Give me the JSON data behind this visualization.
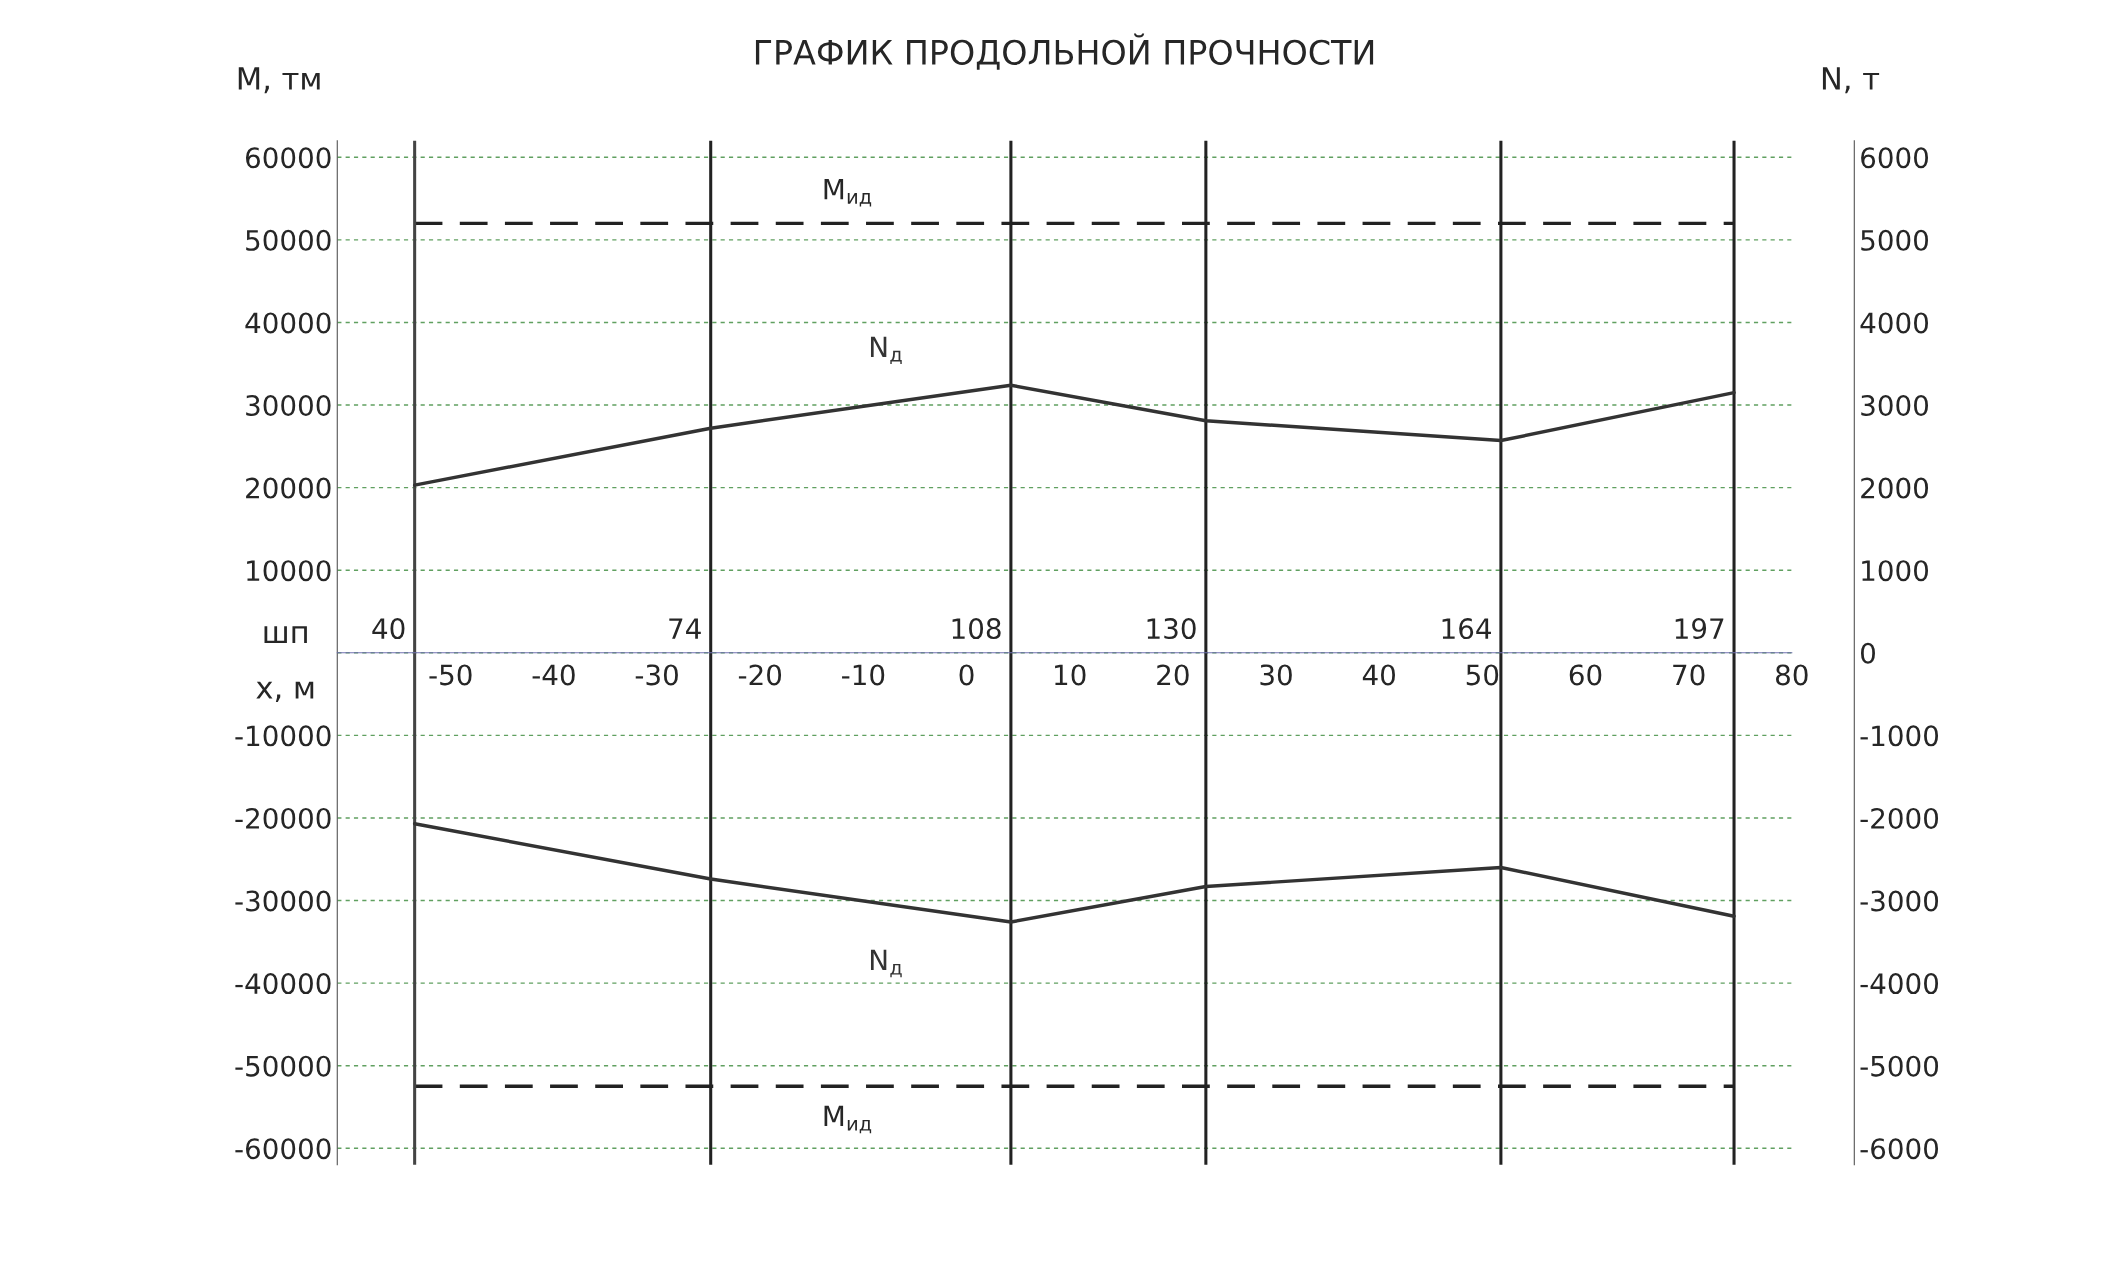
{
  "chart_data": {
    "type": "line",
    "title": "ГРАФИК ПРОДОЛЬНОЙ ПРОЧНОСТИ",
    "xlabel": "x, м",
    "ylabel": "M, тм",
    "y2label": "N, т",
    "annotations": [
      "шп",
      {
        "text": "40",
        "x": -53.5,
        "y": 0
      },
      {
        "text": "74",
        "x": -24.8,
        "y": 0
      },
      {
        "text": "108",
        "x": 4.3,
        "y": 0
      },
      {
        "text": "130",
        "x": 23.2,
        "y": 0
      },
      {
        "text": "164",
        "x": 51.8,
        "y": 0
      },
      {
        "text": "197",
        "x": 74.4,
        "y": 0
      }
    ],
    "xlim": [
      -61,
      80
    ],
    "xticks": [
      -50,
      -40,
      -30,
      -20,
      -10,
      0,
      10,
      20,
      30,
      40,
      50,
      60,
      70,
      80
    ],
    "ylim": [
      -62000,
      62000
    ],
    "yticks": [
      -60000,
      -50000,
      -40000,
      -30000,
      -20000,
      -10000,
      {
        "value": 0,
        "label": null
      },
      10000,
      20000,
      30000,
      40000,
      50000,
      60000
    ],
    "y2lim": [
      -6200,
      6200
    ],
    "y2ticks": [
      -6000,
      -5000,
      -4000,
      -3000,
      -2000,
      -1000,
      0,
      1000,
      2000,
      3000,
      4000,
      5000,
      6000
    ],
    "grid": "y",
    "legend": false,
    "marker": "none",
    "line_style": "solid",
    "series": [
      {
        "name": "N$_{д}$",
        "color": "#333333",
        "axis": "y2",
        "x": [
          -53.5,
          -24.8,
          4.3,
          23.2,
          51.8,
          74.4
        ],
        "values": [
          2030,
          2720,
          3240,
          2810,
          2570,
          3150
        ]
      },
      {
        "name": "N$_{д}$",
        "color": "#333333",
        "axis": "y2",
        "x": [
          -53.5,
          -24.8,
          4.3,
          23.2,
          51.8,
          74.4
        ],
        "values": [
          -2070,
          -2740,
          -3260,
          -2830,
          -2600,
          -3190
        ]
      }
    ],
    "ref_lines": [
      {
        "axis": "y",
        "value": 52000,
        "label": "M$_{ид}$",
        "color": "#222222",
        "line_style": "dashed"
      },
      {
        "axis": "y",
        "value": -52500,
        "label": "M$_{ид}$",
        "color": "#222222",
        "line_style": "dashed"
      },
      {
        "axis": "x",
        "value": -53.5,
        "color": "#444444",
        "line_style": "solid"
      },
      {
        "axis": "x",
        "value": -24.8,
        "color": "#222222",
        "line_style": "solid"
      },
      {
        "axis": "x",
        "value": 4.3,
        "color": "#222222",
        "line_style": "solid"
      },
      {
        "axis": "x",
        "value": 23.2,
        "color": "#222222",
        "line_style": "solid"
      },
      {
        "axis": "x",
        "value": 51.8,
        "color": "#222222",
        "line_style": "solid"
      },
      {
        "axis": "x",
        "value": 74.4,
        "color": "#222222",
        "line_style": "solid"
      }
    ]
  }
}
